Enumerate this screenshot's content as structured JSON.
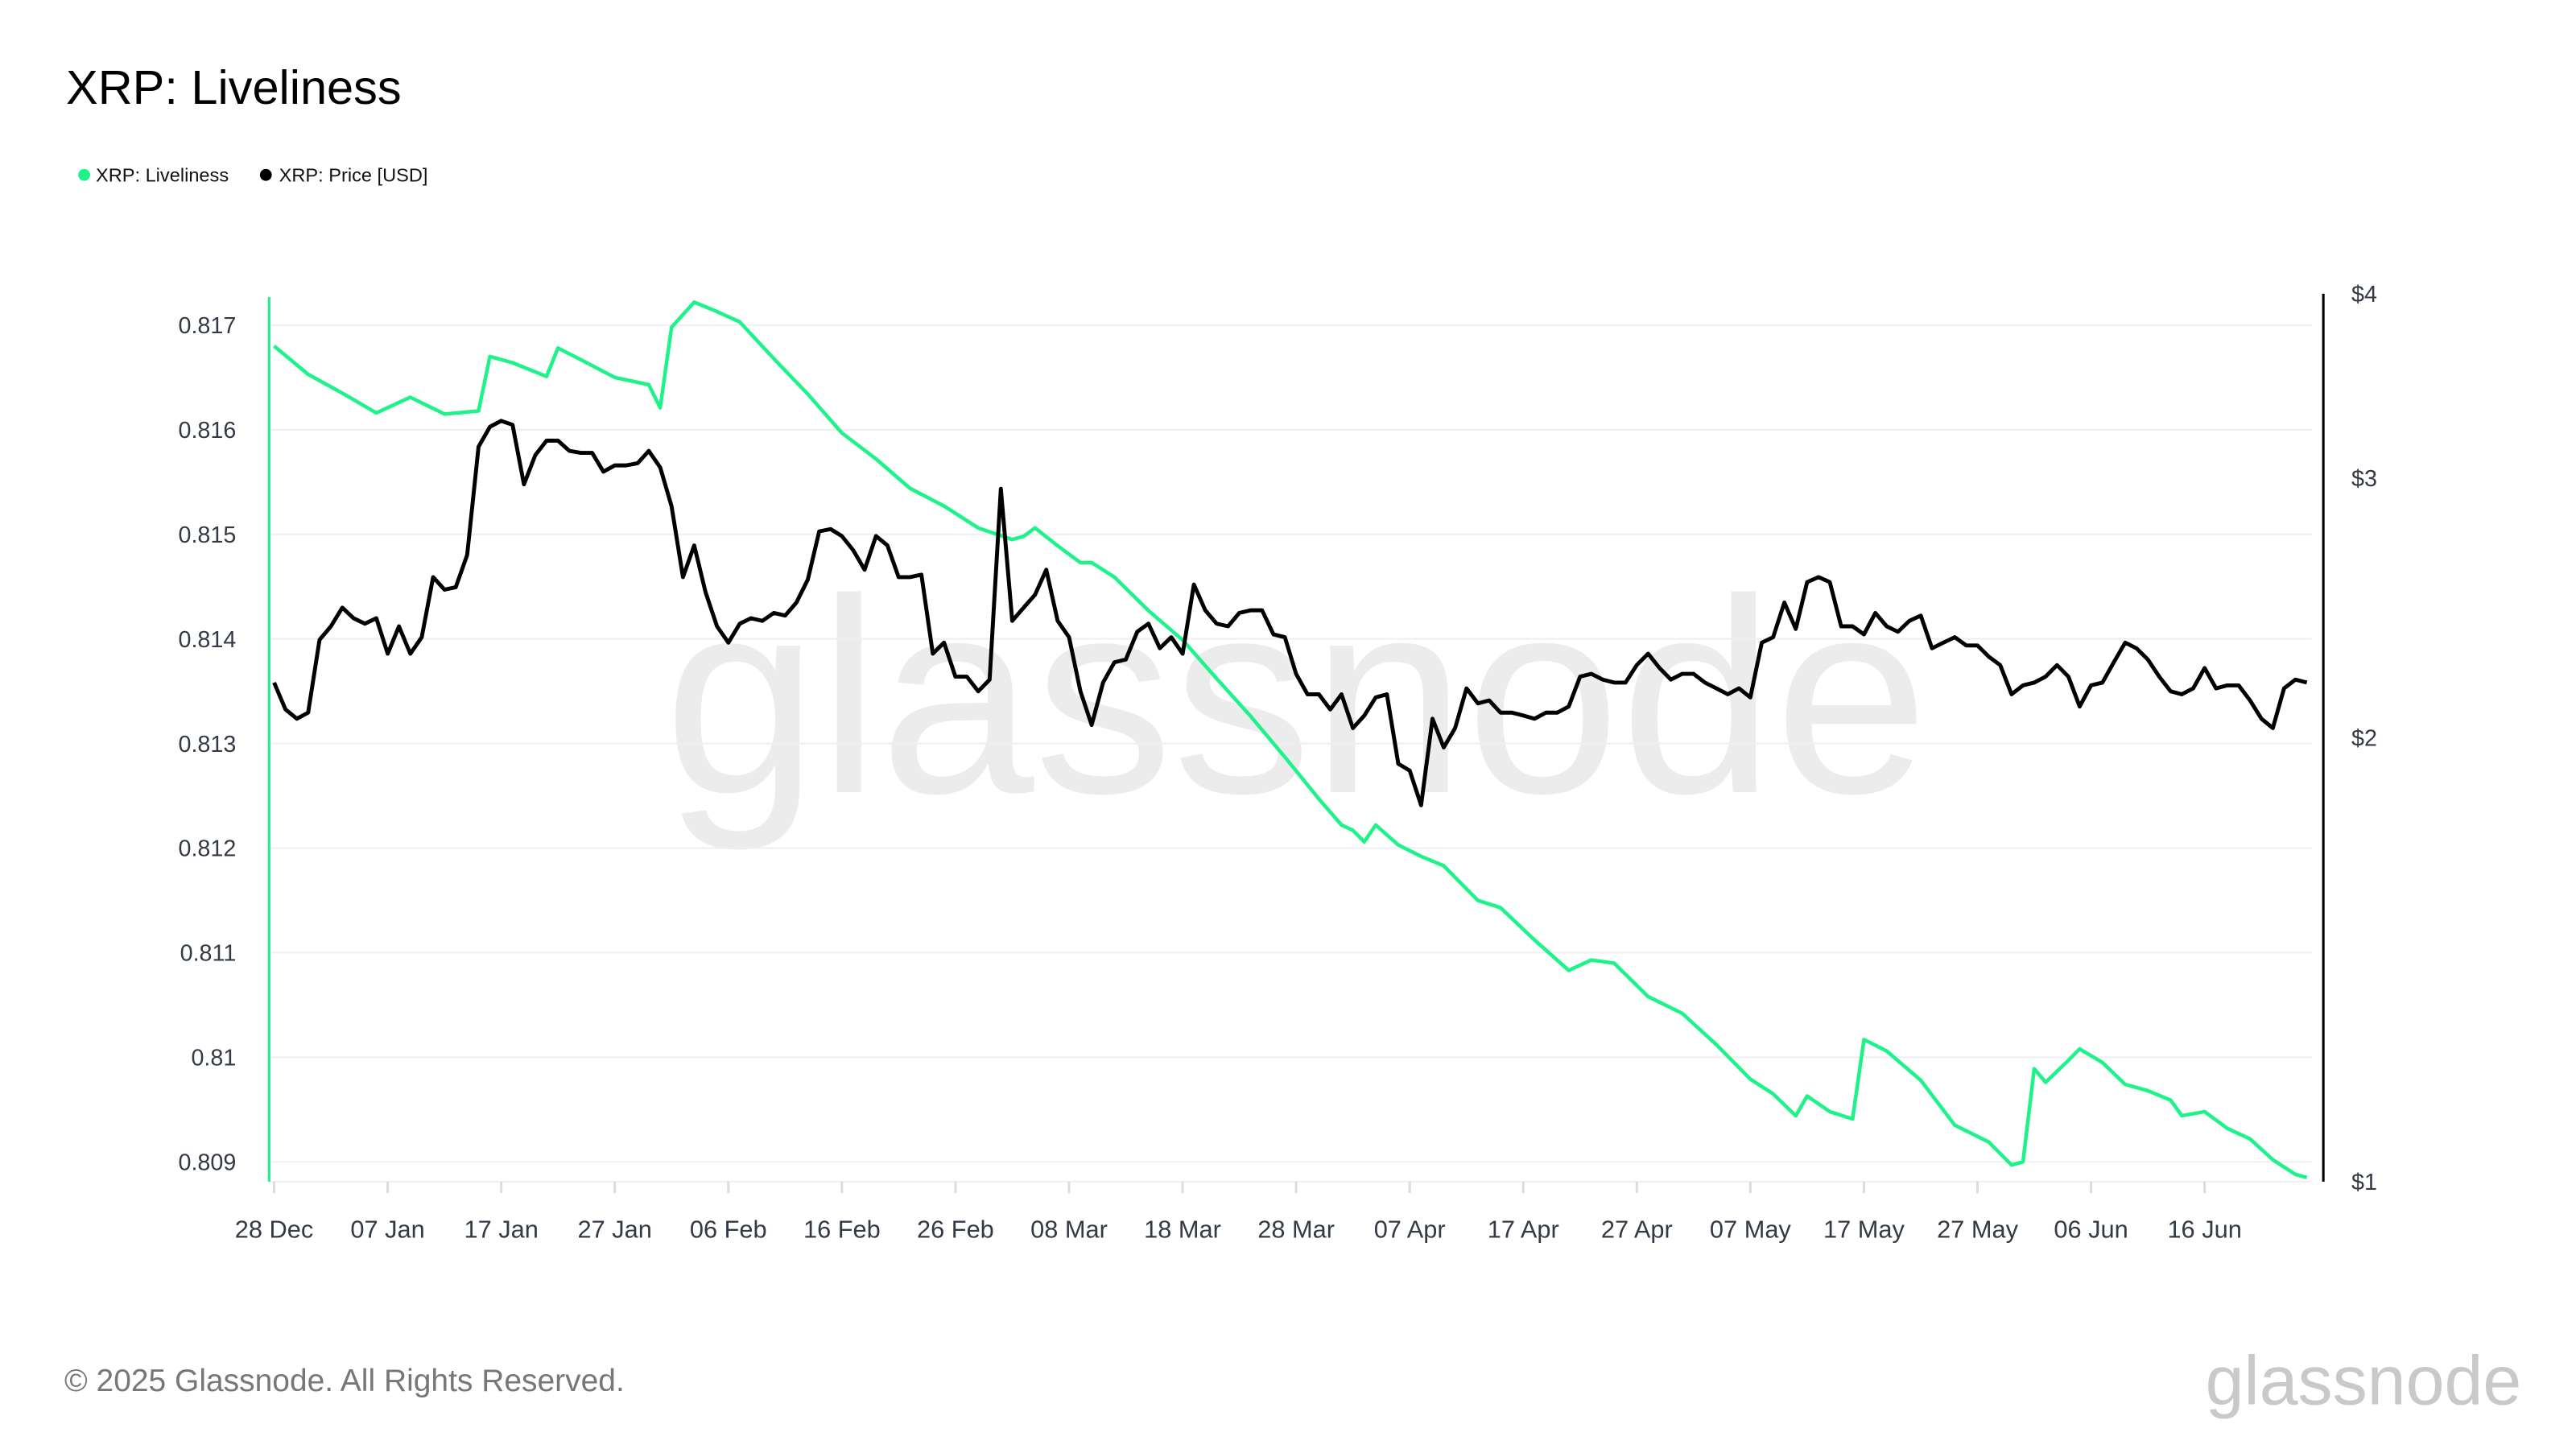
{
  "title": "XRP: Liveliness",
  "legend": [
    {
      "label": "XRP: Liveliness",
      "color": "#1ef38a"
    },
    {
      "label": "XRP: Price [USD]",
      "color": "#000000"
    }
  ],
  "footer": {
    "copyright": "© 2025 Glassnode. All Rights Reserved.",
    "logo_text": "glassnode",
    "watermark": "glassnode"
  },
  "chart_data": {
    "type": "line",
    "title": "XRP: Liveliness",
    "grid": true,
    "legend_position": "top-left",
    "x_ticks": [
      "28 Dec",
      "07 Jan",
      "17 Jan",
      "27 Jan",
      "06 Feb",
      "16 Feb",
      "26 Feb",
      "08 Mar",
      "18 Mar",
      "28 Mar",
      "07 Apr",
      "17 Apr",
      "27 Apr",
      "07 May",
      "17 May",
      "27 May",
      "06 Jun",
      "16 Jun"
    ],
    "y_left": {
      "ticks": [
        "0.817",
        "0.816",
        "0.815",
        "0.814",
        "0.813",
        "0.812",
        "0.811",
        "0.81",
        "0.809"
      ],
      "range": [
        0.80882,
        0.81727
      ],
      "scale": "linear",
      "color": "#1ef38a"
    },
    "y_right": {
      "ticks": [
        "$4",
        "$3",
        "$2",
        "$1"
      ],
      "tick_values": [
        4,
        3,
        2,
        1
      ],
      "range": [
        1,
        4
      ],
      "scale": "log",
      "color": "#000000"
    },
    "x": [
      "28 Dec",
      "29 Dec",
      "30 Dec",
      "31 Dec",
      "01 Jan",
      "02 Jan",
      "03 Jan",
      "04 Jan",
      "05 Jan",
      "06 Jan",
      "07 Jan",
      "08 Jan",
      "09 Jan",
      "10 Jan",
      "11 Jan",
      "12 Jan",
      "13 Jan",
      "14 Jan",
      "15 Jan",
      "16 Jan",
      "17 Jan",
      "18 Jan",
      "19 Jan",
      "20 Jan",
      "21 Jan",
      "22 Jan",
      "23 Jan",
      "24 Jan",
      "25 Jan",
      "26 Jan",
      "27 Jan",
      "28 Jan",
      "29 Jan",
      "30 Jan",
      "31 Jan",
      "01 Feb",
      "02 Feb",
      "03 Feb",
      "04 Feb",
      "05 Feb",
      "06 Feb",
      "07 Feb",
      "08 Feb",
      "09 Feb",
      "10 Feb",
      "11 Feb",
      "12 Feb",
      "13 Feb",
      "14 Feb",
      "15 Feb",
      "16 Feb",
      "17 Feb",
      "18 Feb",
      "19 Feb",
      "20 Feb",
      "21 Feb",
      "22 Feb",
      "23 Feb",
      "24 Feb",
      "25 Feb",
      "26 Feb",
      "27 Feb",
      "28 Feb",
      "01 Mar",
      "02 Mar",
      "03 Mar",
      "04 Mar",
      "05 Mar",
      "06 Mar",
      "07 Mar",
      "08 Mar",
      "09 Mar",
      "10 Mar",
      "11 Mar",
      "12 Mar",
      "13 Mar",
      "14 Mar",
      "15 Mar",
      "16 Mar",
      "17 Mar",
      "18 Mar",
      "19 Mar",
      "20 Mar",
      "21 Mar",
      "22 Mar",
      "23 Mar",
      "24 Mar",
      "25 Mar",
      "26 Mar",
      "27 Mar",
      "28 Mar",
      "29 Mar",
      "30 Mar",
      "31 Mar",
      "01 Apr",
      "02 Apr",
      "03 Apr",
      "04 Apr",
      "05 Apr",
      "06 Apr",
      "07 Apr",
      "08 Apr",
      "09 Apr",
      "10 Apr",
      "11 Apr",
      "12 Apr",
      "13 Apr",
      "14 Apr",
      "15 Apr",
      "16 Apr",
      "17 Apr",
      "18 Apr",
      "19 Apr",
      "20 Apr",
      "21 Apr",
      "22 Apr",
      "23 Apr",
      "24 Apr",
      "25 Apr",
      "26 Apr",
      "27 Apr",
      "28 Apr",
      "29 Apr",
      "30 Apr",
      "01 May",
      "02 May",
      "03 May",
      "04 May",
      "05 May",
      "06 May",
      "07 May",
      "08 May",
      "09 May",
      "10 May",
      "11 May",
      "12 May",
      "13 May",
      "14 May",
      "15 May",
      "16 May",
      "17 May",
      "18 May",
      "19 May",
      "20 May",
      "21 May",
      "22 May",
      "23 May",
      "24 May",
      "25 May",
      "26 May",
      "27 May",
      "28 May",
      "29 May",
      "30 May",
      "31 May",
      "01 Jun",
      "02 Jun",
      "03 Jun",
      "04 Jun",
      "05 Jun",
      "06 Jun",
      "07 Jun",
      "08 Jun",
      "09 Jun",
      "10 Jun",
      "11 Jun",
      "12 Jun",
      "13 Jun",
      "14 Jun",
      "15 Jun",
      "16 Jun",
      "17 Jun",
      "18 Jun",
      "19 Jun",
      "20 Jun",
      "21 Jun",
      "22 Jun",
      "23 Jun",
      "24 Jun",
      "25 Jun"
    ],
    "series": [
      {
        "name": "XRP: Liveliness",
        "axis": "left",
        "color": "#1ef38a",
        "points": [
          [
            "28 Dec",
            0.8168
          ],
          [
            "31 Dec",
            0.81653
          ],
          [
            "03 Jan",
            0.81635
          ],
          [
            "06 Jan",
            0.81616
          ],
          [
            "09 Jan",
            0.81631
          ],
          [
            "12 Jan",
            0.81615
          ],
          [
            "15 Jan",
            0.81618
          ],
          [
            "16 Jan",
            0.8167
          ],
          [
            "18 Jan",
            0.81664
          ],
          [
            "21 Jan",
            0.81651
          ],
          [
            "22 Jan",
            0.81678
          ],
          [
            "24 Jan",
            0.81667
          ],
          [
            "27 Jan",
            0.8165
          ],
          [
            "30 Jan",
            0.81643
          ],
          [
            "31 Jan",
            0.81621
          ],
          [
            "01 Feb",
            0.81698
          ],
          [
            "03 Feb",
            0.81722
          ],
          [
            "05 Feb",
            0.81713
          ],
          [
            "07 Feb",
            0.81703
          ],
          [
            "10 Feb",
            0.81668
          ],
          [
            "13 Feb",
            0.81634
          ],
          [
            "16 Feb",
            0.81597
          ],
          [
            "19 Feb",
            0.81572
          ],
          [
            "22 Feb",
            0.81544
          ],
          [
            "25 Feb",
            0.81527
          ],
          [
            "28 Feb",
            0.81506
          ],
          [
            "03 Mar",
            0.81495
          ],
          [
            "04 Mar",
            0.81498
          ],
          [
            "05 Mar",
            0.81506
          ],
          [
            "07 Mar",
            0.81489
          ],
          [
            "09 Mar",
            0.81473
          ],
          [
            "10 Mar",
            0.81473
          ],
          [
            "12 Mar",
            0.81459
          ],
          [
            "15 Mar",
            0.81427
          ],
          [
            "18 Mar",
            0.81399
          ],
          [
            "21 Mar",
            0.81362
          ],
          [
            "24 Mar",
            0.81326
          ],
          [
            "27 Mar",
            0.81287
          ],
          [
            "30 Mar",
            0.81247
          ],
          [
            "01 Apr",
            0.81222
          ],
          [
            "02 Apr",
            0.81217
          ],
          [
            "03 Apr",
            0.81206
          ],
          [
            "04 Apr",
            0.81222
          ],
          [
            "06 Apr",
            0.81203
          ],
          [
            "08 Apr",
            0.81192
          ],
          [
            "10 Apr",
            0.81183
          ],
          [
            "13 Apr",
            0.8115
          ],
          [
            "15 Apr",
            0.81143
          ],
          [
            "18 Apr",
            0.81112
          ],
          [
            "21 Apr",
            0.81083
          ],
          [
            "23 Apr",
            0.81093
          ],
          [
            "25 Apr",
            0.8109
          ],
          [
            "28 Apr",
            0.81058
          ],
          [
            "01 May",
            0.81042
          ],
          [
            "04 May",
            0.81012
          ],
          [
            "07 May",
            0.80979
          ],
          [
            "09 May",
            0.80965
          ],
          [
            "11 May",
            0.80944
          ],
          [
            "12 May",
            0.80963
          ],
          [
            "14 May",
            0.80948
          ],
          [
            "16 May",
            0.80941
          ],
          [
            "17 May",
            0.81017
          ],
          [
            "19 May",
            0.81006
          ],
          [
            "22 May",
            0.80978
          ],
          [
            "25 May",
            0.80935
          ],
          [
            "28 May",
            0.80919
          ],
          [
            "30 May",
            0.80897
          ],
          [
            "31 May",
            0.809
          ],
          [
            "01 Jun",
            0.80989
          ],
          [
            "02 Jun",
            0.80976
          ],
          [
            "04 Jun",
            0.80997
          ],
          [
            "05 Jun",
            0.81008
          ],
          [
            "07 Jun",
            0.80995
          ],
          [
            "09 Jun",
            0.80974
          ],
          [
            "11 Jun",
            0.80968
          ],
          [
            "13 Jun",
            0.80959
          ],
          [
            "14 Jun",
            0.80944
          ],
          [
            "16 Jun",
            0.80948
          ],
          [
            "18 Jun",
            0.80932
          ],
          [
            "20 Jun",
            0.80922
          ],
          [
            "22 Jun",
            0.80902
          ],
          [
            "24 Jun",
            0.80888
          ],
          [
            "25 Jun",
            0.80885
          ]
        ]
      },
      {
        "name": "XRP: Price [USD]",
        "axis": "right",
        "color": "#000000",
        "values": [
          2.18,
          2.09,
          2.06,
          2.08,
          2.33,
          2.38,
          2.45,
          2.41,
          2.39,
          2.41,
          2.28,
          2.38,
          2.28,
          2.34,
          2.57,
          2.52,
          2.53,
          2.66,
          3.15,
          3.25,
          3.28,
          3.26,
          2.97,
          3.11,
          3.18,
          3.18,
          3.13,
          3.12,
          3.12,
          3.03,
          3.06,
          3.06,
          3.07,
          3.13,
          3.05,
          2.87,
          2.57,
          2.7,
          2.51,
          2.38,
          2.32,
          2.39,
          2.41,
          2.4,
          2.43,
          2.42,
          2.47,
          2.56,
          2.76,
          2.77,
          2.74,
          2.68,
          2.6,
          2.74,
          2.7,
          2.57,
          2.57,
          2.58,
          2.28,
          2.32,
          2.2,
          2.2,
          2.15,
          2.19,
          2.95,
          2.4,
          2.45,
          2.5,
          2.6,
          2.4,
          2.34,
          2.15,
          2.04,
          2.18,
          2.25,
          2.26,
          2.36,
          2.39,
          2.3,
          2.34,
          2.28,
          2.54,
          2.44,
          2.39,
          2.38,
          2.43,
          2.44,
          2.44,
          2.35,
          2.34,
          2.21,
          2.14,
          2.14,
          2.09,
          2.14,
          2.03,
          2.07,
          2.13,
          2.14,
          1.92,
          1.9,
          1.8,
          2.06,
          1.97,
          2.03,
          2.16,
          2.11,
          2.12,
          2.08,
          2.08,
          2.07,
          2.06,
          2.08,
          2.08,
          2.1,
          2.2,
          2.21,
          2.19,
          2.18,
          2.18,
          2.24,
          2.28,
          2.23,
          2.19,
          2.21,
          2.21,
          2.18,
          2.16,
          2.14,
          2.16,
          2.13,
          2.32,
          2.34,
          2.47,
          2.37,
          2.55,
          2.57,
          2.55,
          2.38,
          2.38,
          2.35,
          2.43,
          2.38,
          2.36,
          2.4,
          2.42,
          2.3,
          2.32,
          2.34,
          2.31,
          2.31,
          2.27,
          2.24,
          2.14,
          2.17,
          2.18,
          2.2,
          2.24,
          2.2,
          2.1,
          2.17,
          2.18,
          2.25,
          2.32,
          2.3,
          2.26,
          2.2,
          2.15,
          2.14,
          2.16,
          2.23,
          2.16,
          2.17,
          2.17,
          2.12,
          2.06,
          2.03,
          2.16,
          2.19,
          2.18
        ]
      }
    ]
  }
}
